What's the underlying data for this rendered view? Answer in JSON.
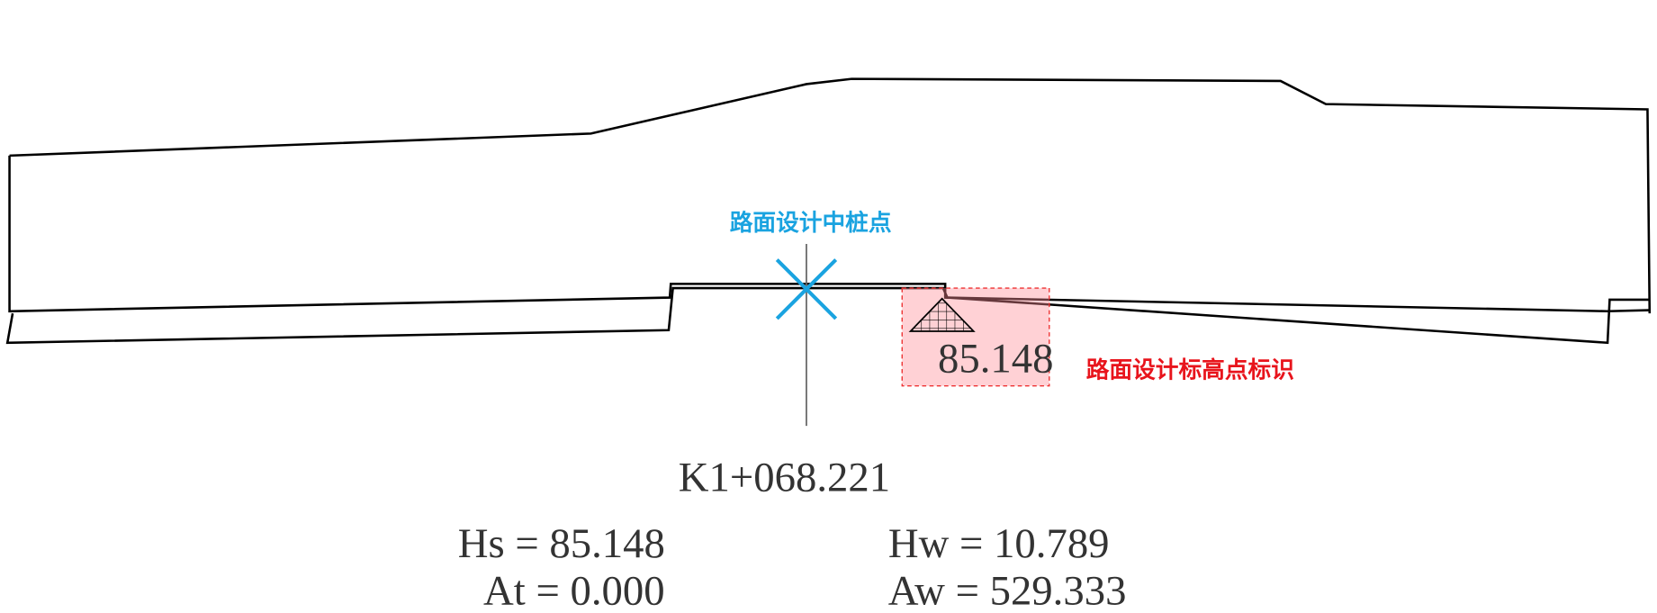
{
  "labels": {
    "center_stake": "路面设计中桩点",
    "elevation_mark": "路面设计标高点标识"
  },
  "elevation_value": "85.148",
  "station": "K1+068.221",
  "parameters": [
    "Hs = 85.148",
    "At = 0.000",
    "Hw = 10.789",
    "Aw = 529.333"
  ]
}
